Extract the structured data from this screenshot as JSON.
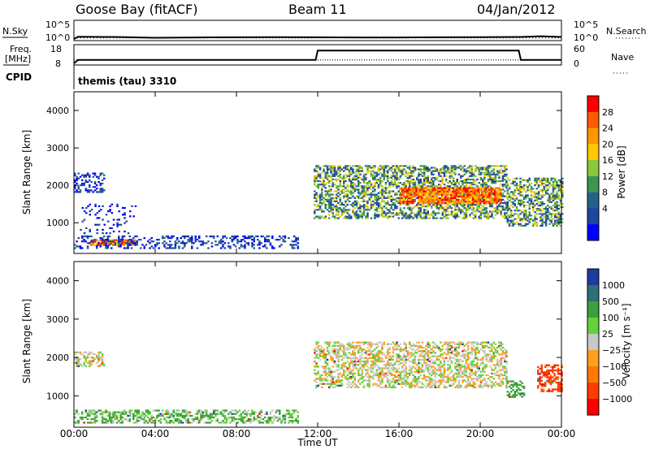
{
  "header": {
    "station": "Goose Bay (fitACF)",
    "beam": "Beam 11",
    "date": "04/Jan/2012"
  },
  "noise_panel": {
    "left_label": "N.Sky",
    "right_label": "N.Search",
    "left_ticks": [
      "10^5",
      "10^0"
    ],
    "right_ticks": [
      "10^5",
      "10^0"
    ]
  },
  "freq_panel": {
    "left_label_line1": "Freq.",
    "left_label_line2": "[MHz]",
    "right_label": "Nave",
    "left_ticks": [
      "18",
      "8"
    ],
    "right_ticks": [
      "60",
      "0"
    ]
  },
  "cpid": {
    "label": "CPID",
    "value": "themis (tau) 3310"
  },
  "x_axis": {
    "label": "Time UT",
    "tick_labels": [
      "00:00",
      "04:00",
      "08:00",
      "12:00",
      "16:00",
      "20:00",
      "00:00"
    ]
  },
  "power_panel": {
    "ylabel": "Slant Range [km]",
    "colorbar_label": "Power [dB]",
    "colorbar_ticks": [
      "28",
      "24",
      "20",
      "16",
      "12",
      "8",
      "4"
    ],
    "colorbar_colors": [
      "#ff0000",
      "#ff5a00",
      "#ff9600",
      "#ffc800",
      "#8cc83c",
      "#3c9650",
      "#28608c",
      "#1e46a0",
      "#0000ff"
    ]
  },
  "velocity_panel": {
    "ylabel": "Slant Range [km]",
    "colorbar_label": "Velocity [m s⁻¹]",
    "colorbar_ticks": [
      "1000",
      "500",
      "100",
      "25",
      "−25",
      "−100",
      "−500",
      "−1000"
    ],
    "colorbar_colors": [
      "#1e3ca0",
      "#2d6e78",
      "#3ca03c",
      "#64d23c",
      "#c8c8c8",
      "#ffa01e",
      "#ff7800",
      "#ff3c00",
      "#ff0000"
    ]
  },
  "chart_data": [
    {
      "type": "line",
      "title": "Goose Bay (fitACF)  Beam 11  04/Jan/2012",
      "series": [
        {
          "name": "N.Sky",
          "x_hours": [
            0,
            0.2,
            2,
            4,
            6,
            8,
            10,
            12,
            14,
            16,
            18,
            20,
            22,
            23,
            24
          ],
          "values_log10": [
            0,
            0.65,
            0.6,
            0.35,
            0.45,
            0.5,
            0.55,
            0.5,
            0.45,
            0.45,
            0.5,
            0.55,
            0.6,
            0.8,
            0.6
          ]
        },
        {
          "name": "N.Search",
          "x_hours": [
            0,
            24
          ],
          "values_log10": [
            0.3,
            0.3
          ]
        }
      ],
      "ylim_log10": [
        0,
        5
      ]
    },
    {
      "type": "line",
      "series": [
        {
          "name": "Freq.",
          "x_hours": [
            0,
            0.2,
            11.9,
            12.0,
            21.9,
            22.0,
            24
          ],
          "values": [
            8,
            10,
            10,
            15.5,
            15.5,
            10,
            10
          ]
        },
        {
          "name": "Nave",
          "x_hours": [
            0,
            24
          ],
          "values": [
            12,
            12
          ]
        }
      ],
      "ylim_left": [
        8,
        18
      ],
      "ylim_right": [
        0,
        60
      ]
    },
    {
      "type": "heatmap",
      "quantity": "Power [dB]",
      "xlim_hours": [
        0,
        24
      ],
      "ylim_km": [
        180,
        4500
      ],
      "yticks_km": [
        1000,
        2000,
        3000,
        4000
      ],
      "colorbar_ticks": [
        4,
        8,
        12,
        16,
        20,
        24,
        28
      ],
      "regions": [
        {
          "t": [
            0.8,
            3.0
          ],
          "r": [
            380,
            560
          ],
          "level": "strong"
        },
        {
          "t": [
            0.0,
            11.0
          ],
          "r": [
            300,
            650
          ],
          "level": "weak"
        },
        {
          "t": [
            0.0,
            1.5
          ],
          "r": [
            1800,
            2300
          ],
          "level": "weak"
        },
        {
          "t": [
            0.2,
            3.0
          ],
          "r": [
            700,
            1500
          ],
          "level": "sparse"
        },
        {
          "t": [
            11.8,
            21.3
          ],
          "r": [
            1100,
            2500
          ],
          "level": "medium"
        },
        {
          "t": [
            16.0,
            21.0
          ],
          "r": [
            1500,
            1950
          ],
          "level": "strong"
        },
        {
          "t": [
            21.3,
            24.0
          ],
          "r": [
            900,
            2200
          ],
          "level": "medium"
        }
      ]
    },
    {
      "type": "heatmap",
      "quantity": "Velocity [m s-1]",
      "xlim_hours": [
        0,
        24
      ],
      "ylim_km": [
        180,
        4500
      ],
      "yticks_km": [
        1000,
        2000,
        3000,
        4000
      ],
      "colorbar_ticks": [
        1000,
        500,
        100,
        25,
        -25,
        -100,
        -500,
        -1000
      ],
      "regions": [
        {
          "t": [
            0.0,
            1.5
          ],
          "r": [
            1750,
            2150
          ],
          "velocity": 0
        },
        {
          "t": [
            0.0,
            11.0
          ],
          "r": [
            280,
            620
          ],
          "velocity": 60
        },
        {
          "t": [
            11.8,
            21.3
          ],
          "r": [
            1200,
            2400
          ],
          "velocity": 0
        },
        {
          "t": [
            21.3,
            22.2
          ],
          "r": [
            950,
            1400
          ],
          "velocity": 200
        },
        {
          "t": [
            22.8,
            24.0
          ],
          "r": [
            1100,
            1800
          ],
          "velocity": -700
        }
      ]
    }
  ]
}
